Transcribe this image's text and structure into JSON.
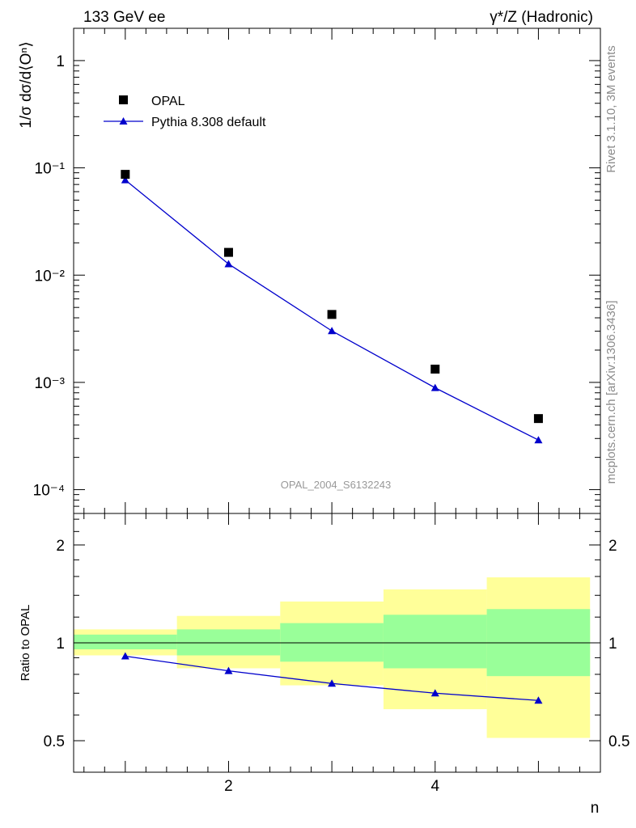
{
  "header": {
    "left": "133 GeV ee",
    "right": "γ*/Z (Hadronic)"
  },
  "side_labels": {
    "rivet": "Rivet 3.1.10,  3M events",
    "mcplots": "mcplots.cern.ch [arXiv:1306.3436]"
  },
  "analysis_id": "OPAL_2004_S6132243",
  "chart_data": [
    {
      "type": "scatter",
      "panel": "main",
      "ylabel": "1/σ dσ/d⟨Oⁿ⟩",
      "yscale": "log",
      "ylim": [
        6e-05,
        2
      ],
      "xlim": [
        0.5,
        5.6
      ],
      "y_tick_labels": [
        "1",
        "10⁻¹",
        "10⁻²",
        "10⁻³",
        "10⁻⁴"
      ],
      "legend_position": "top-left",
      "series": [
        {
          "name": "OPAL",
          "marker": "square",
          "color": "#000000",
          "x": [
            1,
            2,
            3,
            4,
            5
          ],
          "values": [
            0.087,
            0.0163,
            0.0043,
            0.00133,
            0.00046
          ]
        },
        {
          "name": "Pythia 8.308 default",
          "marker": "triangle",
          "line": true,
          "color": "#0000cc",
          "x": [
            1,
            2,
            3,
            4,
            5
          ],
          "values": [
            0.077,
            0.0127,
            0.00302,
            0.00089,
            0.00029
          ]
        }
      ]
    },
    {
      "type": "line",
      "panel": "ratio",
      "ylabel": "Ratio to OPAL",
      "xlabel": "n",
      "yscale": "log",
      "ylim": [
        0.4,
        2.5
      ],
      "xlim": [
        0.5,
        5.6
      ],
      "x_tick_labels": [
        "2",
        "4"
      ],
      "y_tick_labels": [
        "2",
        "1",
        "0.5"
      ],
      "reference_line": 1,
      "uncertainty_bands": [
        {
          "x_low": 0.5,
          "x_high": 1.5,
          "yellow": [
            0.915,
            1.1
          ],
          "green": [
            0.955,
            1.06
          ]
        },
        {
          "x_low": 1.5,
          "x_high": 2.5,
          "yellow": [
            0.835,
            1.21
          ],
          "green": [
            0.915,
            1.1
          ]
        },
        {
          "x_low": 2.5,
          "x_high": 3.5,
          "yellow": [
            0.74,
            1.34
          ],
          "green": [
            0.875,
            1.15
          ]
        },
        {
          "x_low": 3.5,
          "x_high": 4.5,
          "yellow": [
            0.625,
            1.46
          ],
          "green": [
            0.835,
            1.22
          ]
        },
        {
          "x_low": 4.5,
          "x_high": 5.5,
          "yellow": [
            0.51,
            1.59
          ],
          "green": [
            0.79,
            1.27
          ]
        }
      ],
      "series": [
        {
          "name": "Pythia 8.308 default",
          "marker": "triangle",
          "color": "#0000cc",
          "x": [
            1,
            2,
            3,
            4,
            5
          ],
          "values": [
            0.91,
            0.82,
            0.75,
            0.7,
            0.665
          ]
        }
      ]
    }
  ]
}
